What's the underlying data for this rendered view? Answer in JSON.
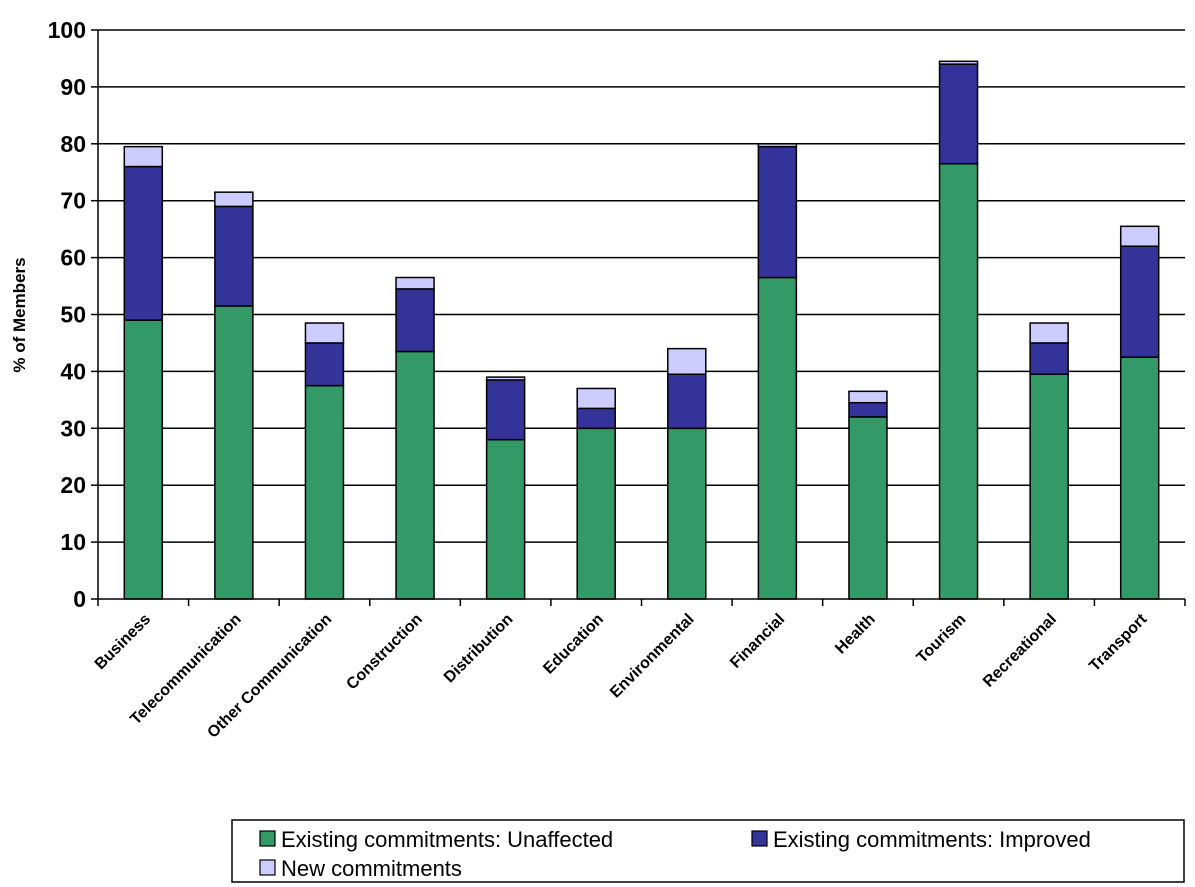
{
  "chart_data": {
    "type": "bar",
    "stacked": true,
    "title": "",
    "xlabel": "",
    "ylabel": "% of Members",
    "ylim": [
      0,
      100
    ],
    "yticks": [
      0,
      10,
      20,
      30,
      40,
      50,
      60,
      70,
      80,
      90,
      100
    ],
    "grid": true,
    "legend_position": "bottom",
    "categories": [
      "Business",
      "Telecommunication",
      "Other Communication",
      "Construction",
      "Distribution",
      "Education",
      "Environmental",
      "Financial",
      "Health",
      "Tourism",
      "Recreational",
      "Transport"
    ],
    "series": [
      {
        "name": "Existing commitments:  Unaffected",
        "color": "#339966",
        "values": [
          49,
          51.5,
          37.5,
          43.5,
          28,
          30,
          30,
          56.5,
          32,
          76.5,
          39.5,
          42.5
        ]
      },
      {
        "name": "Existing commitments:  Improved",
        "color": "#333399",
        "values": [
          27,
          17.5,
          7.5,
          11,
          10.5,
          3.5,
          9.5,
          23,
          2.5,
          17.5,
          5.5,
          19.5
        ]
      },
      {
        "name": "New commitments",
        "color": "#ccccff",
        "values": [
          3.5,
          2.5,
          3.5,
          2,
          0.5,
          3.5,
          4.5,
          0.5,
          2,
          0.5,
          3.5,
          3.5
        ]
      }
    ]
  }
}
